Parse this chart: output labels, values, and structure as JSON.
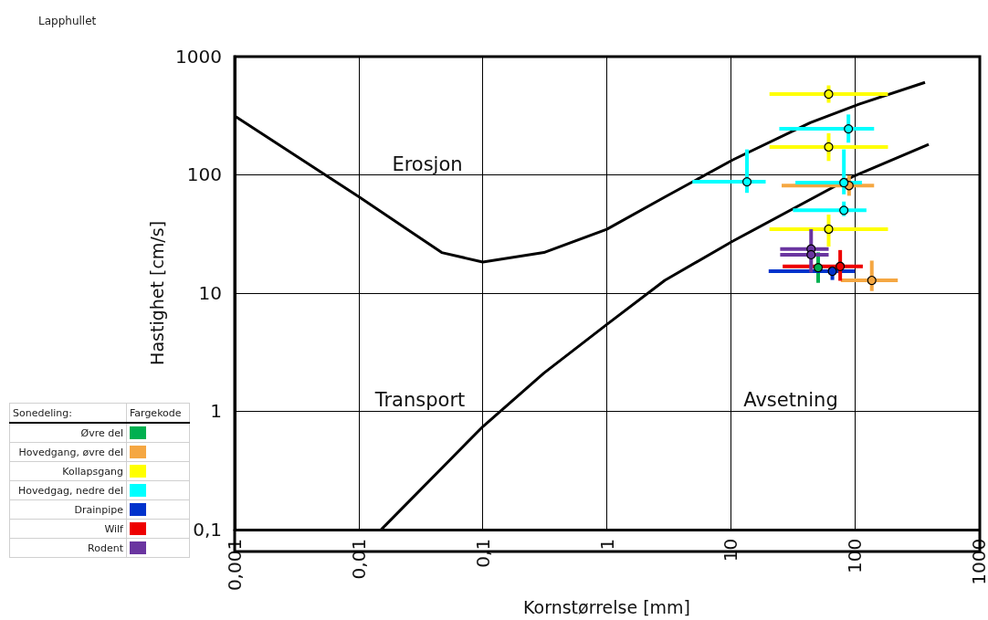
{
  "chart_data": {
    "type": "scatter",
    "title": "Lapphullet",
    "xlabel": "Kornstørrelse [mm]",
    "ylabel": "Hastighet [cm/s]",
    "legend_title": "Sonedeling:",
    "log": "xy",
    "grid": true,
    "legend": "bottom left",
    "marker": "circle",
    "xlim": [
      0.001,
      1000
    ],
    "ylim": [
      0.1,
      1000
    ],
    "xticks": [
      {
        "value": 0.001,
        "label": "0,001"
      },
      {
        "value": 0.01,
        "label": "0,01"
      },
      {
        "value": 0.1,
        "label": "0,1"
      },
      1,
      10,
      100,
      1000
    ],
    "yticks": [
      {
        "value": 0.1,
        "label": "0,1"
      },
      1,
      10,
      100,
      1000
    ],
    "annotations": [
      "Fargekode",
      "Erosjon",
      "Transport",
      "Avsetning"
    ],
    "series": [
      {
        "name": "Øvre del",
        "color": "#00b050",
        "x": [
          50.6
        ],
        "values": [
          16.4
        ],
        "xerrors": [
          null
        ],
        "errors": [
          [
            12.2,
            22.1
          ]
        ]
      },
      {
        "name": "Hovedgang, øvre del",
        "color": "#f5a742",
        "x": [
          89.8,
          137
        ],
        "values": [
          81.1,
          12.8
        ],
        "xerrors": [
          [
            25.7,
            143
          ],
          [
            77.1,
            222
          ]
        ],
        "errors": [
          [
            66.5,
            99
          ],
          [
            10.4,
            18.8
          ]
        ]
      },
      {
        "name": "Kollapsgang",
        "color": "#ffff00",
        "x": [
          61.5,
          61.5,
          61.5
        ],
        "values": [
          482,
          172,
          34.7
        ],
        "xerrors": [
          [
            20.5,
            185
          ],
          [
            20.5,
            185
          ],
          [
            20.5,
            185
          ]
        ],
        "errors": [
          [
            407,
            571
          ],
          [
            131,
            225
          ],
          [
            24.7,
            46.1
          ]
        ]
      },
      {
        "name": "Hovedgag, nedre del",
        "color": "#00ffff",
        "x": [
          88.8,
          13.5,
          81.6,
          81.6
        ],
        "values": [
          245,
          87.3,
          85.9,
          50.1
        ],
        "xerrors": [
          [
            24.6,
            143
          ],
          [
            4.9,
            19.1
          ],
          [
            33.2,
            114
          ],
          [
            31.7,
            124
          ]
        ],
        "errors": [
          [
            187,
            324
          ],
          [
            70.4,
            164
          ],
          [
            68.4,
            164
          ],
          [
            44.8,
            59.4
          ]
        ]
      },
      {
        "name": "Drainpipe",
        "color": "#0033cc",
        "x": [
          65.9
        ],
        "values": [
          15.3
        ],
        "xerrors": [
          [
            20.2,
            100
          ]
        ],
        "errors": [
          [
            12.9,
            16.6
          ]
        ]
      },
      {
        "name": "Wilf",
        "color": "#ee0000",
        "x": [
          76.2
        ],
        "values": [
          16.8
        ],
        "xerrors": [
          [
            26.2,
            116
          ]
        ],
        "errors": [
          [
            12.7,
            23.1
          ]
        ]
      },
      {
        "name": "Rodent",
        "color": "#6a35a0",
        "x": [
          44.4,
          44.4
        ],
        "values": [
          23.6,
          21.1
        ],
        "xerrors": [
          [
            25,
            61.5
          ],
          [
            25,
            61.5
          ]
        ],
        "errors": [
          [
            14.9,
            34.7
          ],
          null
        ]
      },
      {
        "type": "line",
        "color": "#000000",
        "marker": "none",
        "x": [
          0.001,
          0.0101,
          0.0467,
          0.1,
          0.311,
          1,
          2.94,
          10.4,
          43.7,
          108,
          368
        ],
        "values": [
          315,
          64.9,
          22,
          18.3,
          22,
          34.6,
          64.9,
          134,
          276,
          396,
          605
        ]
      },
      {
        "type": "line",
        "color": "#000000",
        "marker": "none",
        "x": [
          0.0152,
          0.1,
          0.311,
          1,
          2.94,
          10.4,
          98.4,
          394
        ],
        "values": [
          0.1,
          0.74,
          2.1,
          5.42,
          12.8,
          27.5,
          97.7,
          181
        ]
      }
    ]
  }
}
